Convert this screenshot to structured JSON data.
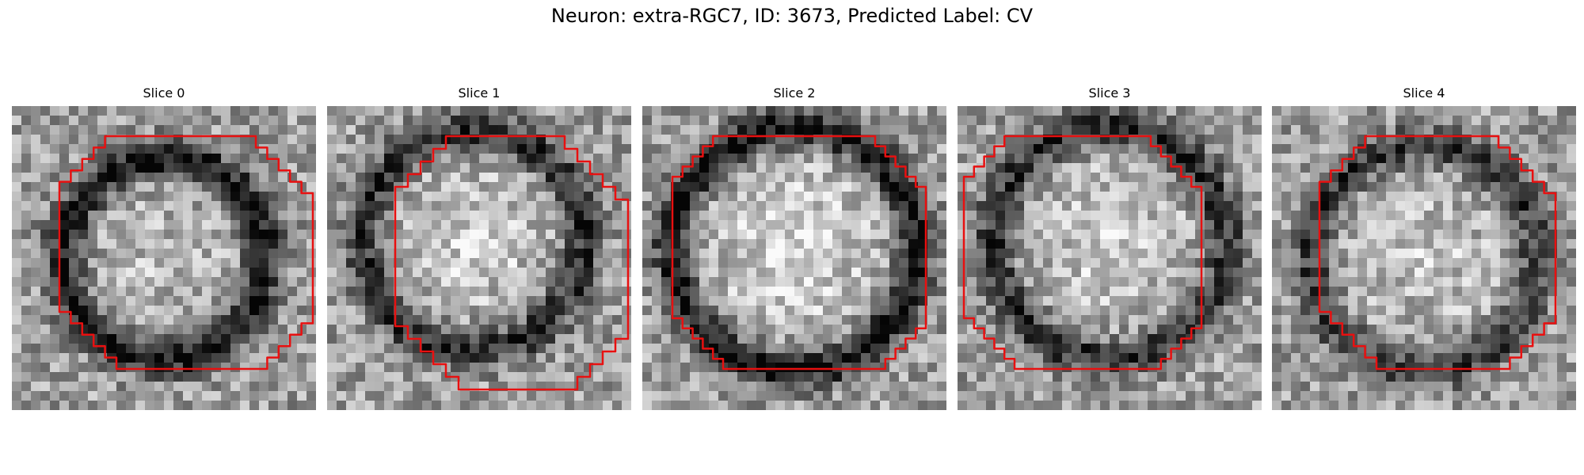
{
  "figure": {
    "title": "Neuron: extra-RGC7, ID: 3673, Predicted Label: CV",
    "contour_color": "#e81010"
  },
  "panels": [
    {
      "title": "Slice 0"
    },
    {
      "title": "Slice 1"
    },
    {
      "title": "Slice 2"
    },
    {
      "title": "Slice 3"
    },
    {
      "title": "Slice 4"
    }
  ]
}
